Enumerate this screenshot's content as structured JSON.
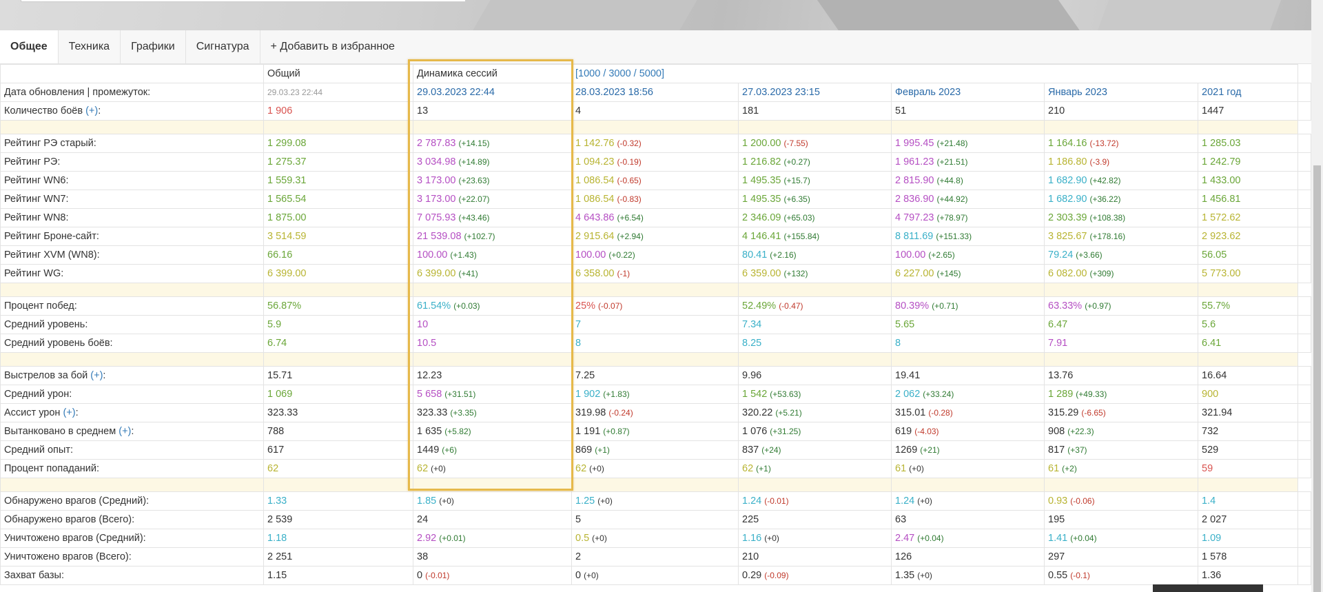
{
  "tabs": [
    {
      "label": "Общее",
      "active": true
    },
    {
      "label": "Техника",
      "active": false
    },
    {
      "label": "Графики",
      "active": false
    },
    {
      "label": "Сигнатура",
      "active": false
    },
    {
      "label": "+ Добавить в избранное",
      "active": false
    }
  ],
  "header": {
    "col1": "Общий",
    "col2": "Динамика сессий",
    "col3": "[1000 / 3000 / 5000]"
  },
  "colors": {
    "red": "#d9534f",
    "green": "#6aa638",
    "yellow": "#b8b432",
    "purple": "#b54fc3",
    "teal": "#3ab0c8",
    "highlight": "#e6b94a",
    "separator": "#fdf8e4",
    "link": "#337ab7"
  },
  "rows": [
    {
      "label": "Дата обновления | промежуток:",
      "cells": [
        {
          "v": "29.03.23 22:44",
          "c": "grey"
        },
        {
          "v": "29.03.2023 22:44",
          "c": "blue"
        },
        {
          "v": "28.03.2023 18:56",
          "c": "blue"
        },
        {
          "v": "27.03.2023 23:15",
          "c": "blue"
        },
        {
          "v": "Февраль 2023",
          "c": "blue"
        },
        {
          "v": "Январь 2023",
          "c": "blue"
        },
        {
          "v": "2021 год",
          "c": "blue"
        }
      ]
    },
    {
      "label": "Количество боёв",
      "plus": "(+)",
      "label_after": ":",
      "cells": [
        {
          "v": "1 906",
          "c": "red"
        },
        {
          "v": "13",
          "c": "dark"
        },
        {
          "v": "4",
          "c": "dark"
        },
        {
          "v": "181",
          "c": "dark"
        },
        {
          "v": "51",
          "c": "dark"
        },
        {
          "v": "210",
          "c": "dark"
        },
        {
          "v": "1447",
          "c": "dark"
        }
      ]
    },
    {
      "sep": true
    },
    {
      "label": "Рейтинг РЭ старый:",
      "cells": [
        {
          "v": "1 299.08",
          "c": "green"
        },
        {
          "v": "2 787.83",
          "c": "purple",
          "d": "(+14.15)",
          "dc": "pos"
        },
        {
          "v": "1 142.76",
          "c": "yellow",
          "d": "(-0.32)",
          "dc": "neg"
        },
        {
          "v": "1 200.00",
          "c": "green",
          "d": "(-7.55)",
          "dc": "neg"
        },
        {
          "v": "1 995.45",
          "c": "purple",
          "d": "(+21.48)",
          "dc": "pos"
        },
        {
          "v": "1 164.16",
          "c": "green",
          "d": "(-13.72)",
          "dc": "neg"
        },
        {
          "v": "1 285.03",
          "c": "green"
        }
      ]
    },
    {
      "label": "Рейтинг РЭ:",
      "cells": [
        {
          "v": "1 275.37",
          "c": "green"
        },
        {
          "v": "3 034.98",
          "c": "purple",
          "d": "(+14.89)",
          "dc": "pos"
        },
        {
          "v": "1 094.23",
          "c": "yellow",
          "d": "(-0.19)",
          "dc": "neg"
        },
        {
          "v": "1 216.82",
          "c": "green",
          "d": "(+0.27)",
          "dc": "pos"
        },
        {
          "v": "1 961.23",
          "c": "purple",
          "d": "(+21.51)",
          "dc": "pos"
        },
        {
          "v": "1 186.80",
          "c": "yellow",
          "d": "(-3.9)",
          "dc": "neg"
        },
        {
          "v": "1 242.79",
          "c": "green"
        }
      ]
    },
    {
      "label": "Рейтинг WN6:",
      "cells": [
        {
          "v": "1 559.31",
          "c": "green"
        },
        {
          "v": "3 173.00",
          "c": "purple",
          "d": "(+23.63)",
          "dc": "pos"
        },
        {
          "v": "1 086.54",
          "c": "yellow",
          "d": "(-0.65)",
          "dc": "neg"
        },
        {
          "v": "1 495.35",
          "c": "green",
          "d": "(+15.7)",
          "dc": "pos"
        },
        {
          "v": "2 815.90",
          "c": "purple",
          "d": "(+44.8)",
          "dc": "pos"
        },
        {
          "v": "1 682.90",
          "c": "teal",
          "d": "(+42.82)",
          "dc": "pos"
        },
        {
          "v": "1 433.00",
          "c": "green"
        }
      ]
    },
    {
      "label": "Рейтинг WN7:",
      "cells": [
        {
          "v": "1 565.54",
          "c": "green"
        },
        {
          "v": "3 173.00",
          "c": "purple",
          "d": "(+22.07)",
          "dc": "pos"
        },
        {
          "v": "1 086.54",
          "c": "yellow",
          "d": "(-0.83)",
          "dc": "neg"
        },
        {
          "v": "1 495.35",
          "c": "green",
          "d": "(+6.35)",
          "dc": "pos"
        },
        {
          "v": "2 836.90",
          "c": "purple",
          "d": "(+44.92)",
          "dc": "pos"
        },
        {
          "v": "1 682.90",
          "c": "teal",
          "d": "(+36.22)",
          "dc": "pos"
        },
        {
          "v": "1 456.81",
          "c": "green"
        }
      ]
    },
    {
      "label": "Рейтинг WN8:",
      "cells": [
        {
          "v": "1 875.00",
          "c": "green"
        },
        {
          "v": "7 075.93",
          "c": "purple",
          "d": "(+43.46)",
          "dc": "pos"
        },
        {
          "v": "4 643.86",
          "c": "purple",
          "d": "(+6.54)",
          "dc": "pos"
        },
        {
          "v": "2 346.09",
          "c": "green",
          "d": "(+65.03)",
          "dc": "pos"
        },
        {
          "v": "4 797.23",
          "c": "purple",
          "d": "(+78.97)",
          "dc": "pos"
        },
        {
          "v": "2 303.39",
          "c": "green",
          "d": "(+108.38)",
          "dc": "pos"
        },
        {
          "v": "1 572.62",
          "c": "yellow"
        }
      ]
    },
    {
      "label": "Рейтинг Броне-сайт:",
      "cells": [
        {
          "v": "3 514.59",
          "c": "yellow"
        },
        {
          "v": "21 539.08",
          "c": "purple",
          "d": "(+102.7)",
          "dc": "pos"
        },
        {
          "v": "2 915.64",
          "c": "yellow",
          "d": "(+2.94)",
          "dc": "pos"
        },
        {
          "v": "4 146.41",
          "c": "green",
          "d": "(+155.84)",
          "dc": "pos"
        },
        {
          "v": "8 811.69",
          "c": "teal",
          "d": "(+151.33)",
          "dc": "pos"
        },
        {
          "v": "3 825.67",
          "c": "yellow",
          "d": "(+178.16)",
          "dc": "pos"
        },
        {
          "v": "2 923.62",
          "c": "yellow"
        }
      ]
    },
    {
      "label": "Рейтинг XVM (WN8):",
      "cells": [
        {
          "v": "66.16",
          "c": "green"
        },
        {
          "v": "100.00",
          "c": "purple",
          "d": "(+1.43)",
          "dc": "pos"
        },
        {
          "v": "100.00",
          "c": "purple",
          "d": "(+0.22)",
          "dc": "pos"
        },
        {
          "v": "80.41",
          "c": "teal",
          "d": "(+2.16)",
          "dc": "pos"
        },
        {
          "v": "100.00",
          "c": "purple",
          "d": "(+2.65)",
          "dc": "pos"
        },
        {
          "v": "79.24",
          "c": "teal",
          "d": "(+3.66)",
          "dc": "pos"
        },
        {
          "v": "56.05",
          "c": "green"
        }
      ]
    },
    {
      "label": "Рейтинг WG:",
      "cells": [
        {
          "v": "6 399.00",
          "c": "yellow"
        },
        {
          "v": "6 399.00",
          "c": "yellow",
          "d": "(+41)",
          "dc": "pos"
        },
        {
          "v": "6 358.00",
          "c": "yellow",
          "d": "(-1)",
          "dc": "neg"
        },
        {
          "v": "6 359.00",
          "c": "yellow",
          "d": "(+132)",
          "dc": "pos"
        },
        {
          "v": "6 227.00",
          "c": "yellow",
          "d": "(+145)",
          "dc": "pos"
        },
        {
          "v": "6 082.00",
          "c": "yellow",
          "d": "(+309)",
          "dc": "pos"
        },
        {
          "v": "5 773.00",
          "c": "yellow"
        }
      ]
    },
    {
      "sep": true
    },
    {
      "label": "Процент побед:",
      "cells": [
        {
          "v": "56.87%",
          "c": "green"
        },
        {
          "v": "61.54%",
          "c": "teal",
          "d": "(+0.03)",
          "dc": "pos"
        },
        {
          "v": "25%",
          "c": "red",
          "d": "(-0.07)",
          "dc": "neg"
        },
        {
          "v": "52.49%",
          "c": "green",
          "d": "(-0.47)",
          "dc": "neg"
        },
        {
          "v": "80.39%",
          "c": "purple",
          "d": "(+0.71)",
          "dc": "pos"
        },
        {
          "v": "63.33%",
          "c": "purple",
          "d": "(+0.97)",
          "dc": "pos"
        },
        {
          "v": "55.7%",
          "c": "green"
        }
      ]
    },
    {
      "label": "Средний уровень:",
      "cells": [
        {
          "v": "5.9",
          "c": "green"
        },
        {
          "v": "10",
          "c": "purple"
        },
        {
          "v": "7",
          "c": "teal"
        },
        {
          "v": "7.34",
          "c": "teal"
        },
        {
          "v": "5.65",
          "c": "green"
        },
        {
          "v": "6.47",
          "c": "green"
        },
        {
          "v": "5.6",
          "c": "green"
        }
      ]
    },
    {
      "label": "Средний уровень боёв:",
      "cells": [
        {
          "v": "6.74",
          "c": "green"
        },
        {
          "v": "10.5",
          "c": "purple"
        },
        {
          "v": "8",
          "c": "teal"
        },
        {
          "v": "8.25",
          "c": "teal"
        },
        {
          "v": "8",
          "c": "teal"
        },
        {
          "v": "7.91",
          "c": "purple"
        },
        {
          "v": "6.41",
          "c": "green"
        }
      ]
    },
    {
      "sep": true
    },
    {
      "label": "Выстрелов за бой",
      "plus": "(+)",
      "label_after": ":",
      "cells": [
        {
          "v": "15.71",
          "c": "dark"
        },
        {
          "v": "12.23",
          "c": "dark"
        },
        {
          "v": "7.25",
          "c": "dark"
        },
        {
          "v": "9.96",
          "c": "dark"
        },
        {
          "v": "19.41",
          "c": "dark"
        },
        {
          "v": "13.76",
          "c": "dark"
        },
        {
          "v": "16.64",
          "c": "dark"
        }
      ]
    },
    {
      "label": "Средний урон:",
      "cells": [
        {
          "v": "1 069",
          "c": "green"
        },
        {
          "v": "5 658",
          "c": "purple",
          "d": "(+31.51)",
          "dc": "pos"
        },
        {
          "v": "1 902",
          "c": "teal",
          "d": "(+1.83)",
          "dc": "pos"
        },
        {
          "v": "1 542",
          "c": "green",
          "d": "(+53.63)",
          "dc": "pos"
        },
        {
          "v": "2 062",
          "c": "teal",
          "d": "(+33.24)",
          "dc": "pos"
        },
        {
          "v": "1 289",
          "c": "green",
          "d": "(+49.33)",
          "dc": "pos"
        },
        {
          "v": "900",
          "c": "yellow"
        }
      ]
    },
    {
      "label": "Ассист урон",
      "plus": "(+)",
      "label_after": ":",
      "cells": [
        {
          "v": "323.33",
          "c": "dark"
        },
        {
          "v": "323.33",
          "c": "dark",
          "d": "(+3.35)",
          "dc": "pos"
        },
        {
          "v": "319.98",
          "c": "dark",
          "d": "(-0.24)",
          "dc": "neg"
        },
        {
          "v": "320.22",
          "c": "dark",
          "d": "(+5.21)",
          "dc": "pos"
        },
        {
          "v": "315.01",
          "c": "dark",
          "d": "(-0.28)",
          "dc": "neg"
        },
        {
          "v": "315.29",
          "c": "dark",
          "d": "(-6.65)",
          "dc": "neg"
        },
        {
          "v": "321.94",
          "c": "dark"
        }
      ]
    },
    {
      "label": "Вытанковано в среднем",
      "plus": "(+)",
      "label_after": ":",
      "cells": [
        {
          "v": "788",
          "c": "dark"
        },
        {
          "v": "1 635",
          "c": "dark",
          "d": "(+5.82)",
          "dc": "pos"
        },
        {
          "v": "1 191",
          "c": "dark",
          "d": "(+0.87)",
          "dc": "pos"
        },
        {
          "v": "1 076",
          "c": "dark",
          "d": "(+31.25)",
          "dc": "pos"
        },
        {
          "v": "619",
          "c": "dark",
          "d": "(-4.03)",
          "dc": "neg"
        },
        {
          "v": "908",
          "c": "dark",
          "d": "(+22.3)",
          "dc": "pos"
        },
        {
          "v": "732",
          "c": "dark"
        }
      ]
    },
    {
      "label": "Средний опыт:",
      "cells": [
        {
          "v": "617",
          "c": "dark"
        },
        {
          "v": "1449",
          "c": "dark",
          "d": "(+6)",
          "dc": "pos"
        },
        {
          "v": "869",
          "c": "dark",
          "d": "(+1)",
          "dc": "pos"
        },
        {
          "v": "837",
          "c": "dark",
          "d": "(+24)",
          "dc": "pos"
        },
        {
          "v": "1269",
          "c": "dark",
          "d": "(+21)",
          "dc": "pos"
        },
        {
          "v": "817",
          "c": "dark",
          "d": "(+37)",
          "dc": "pos"
        },
        {
          "v": "529",
          "c": "dark"
        }
      ]
    },
    {
      "label": "Процент попаданий:",
      "cells": [
        {
          "v": "62",
          "c": "yellow"
        },
        {
          "v": "62",
          "c": "yellow",
          "d": "(+0)",
          "dc": "zero"
        },
        {
          "v": "62",
          "c": "yellow",
          "d": "(+0)",
          "dc": "zero"
        },
        {
          "v": "62",
          "c": "yellow",
          "d": "(+1)",
          "dc": "pos"
        },
        {
          "v": "61",
          "c": "yellow",
          "d": "(+0)",
          "dc": "zero"
        },
        {
          "v": "61",
          "c": "yellow",
          "d": "(+2)",
          "dc": "pos"
        },
        {
          "v": "59",
          "c": "red"
        }
      ]
    },
    {
      "sep": true
    },
    {
      "label": "Обнаружено врагов (Средний):",
      "cells": [
        {
          "v": "1.33",
          "c": "teal"
        },
        {
          "v": "1.85",
          "c": "teal",
          "d": "(+0)",
          "dc": "zero"
        },
        {
          "v": "1.25",
          "c": "teal",
          "d": "(+0)",
          "dc": "zero"
        },
        {
          "v": "1.24",
          "c": "teal",
          "d": "(-0.01)",
          "dc": "neg"
        },
        {
          "v": "1.24",
          "c": "teal",
          "d": "(+0)",
          "dc": "zero"
        },
        {
          "v": "0.93",
          "c": "yellow",
          "d": "(-0.06)",
          "dc": "neg"
        },
        {
          "v": "1.4",
          "c": "teal"
        }
      ]
    },
    {
      "label": "Обнаружено врагов (Всего):",
      "cells": [
        {
          "v": "2 539",
          "c": "dark"
        },
        {
          "v": "24",
          "c": "dark"
        },
        {
          "v": "5",
          "c": "dark"
        },
        {
          "v": "225",
          "c": "dark"
        },
        {
          "v": "63",
          "c": "dark"
        },
        {
          "v": "195",
          "c": "dark"
        },
        {
          "v": "2 027",
          "c": "dark"
        }
      ]
    },
    {
      "label": "Уничтожено врагов (Средний):",
      "cells": [
        {
          "v": "1.18",
          "c": "teal"
        },
        {
          "v": "2.92",
          "c": "purple",
          "d": "(+0.01)",
          "dc": "pos"
        },
        {
          "v": "0.5",
          "c": "yellow",
          "d": "(+0)",
          "dc": "zero"
        },
        {
          "v": "1.16",
          "c": "teal",
          "d": "(+0)",
          "dc": "zero"
        },
        {
          "v": "2.47",
          "c": "purple",
          "d": "(+0.04)",
          "dc": "pos"
        },
        {
          "v": "1.41",
          "c": "teal",
          "d": "(+0.04)",
          "dc": "pos"
        },
        {
          "v": "1.09",
          "c": "teal"
        }
      ]
    },
    {
      "label": "Уничтожено врагов (Всего):",
      "cells": [
        {
          "v": "2 251",
          "c": "dark"
        },
        {
          "v": "38",
          "c": "dark"
        },
        {
          "v": "2",
          "c": "dark"
        },
        {
          "v": "210",
          "c": "dark"
        },
        {
          "v": "126",
          "c": "dark"
        },
        {
          "v": "297",
          "c": "dark"
        },
        {
          "v": "1 578",
          "c": "dark"
        }
      ]
    },
    {
      "label": "Захват базы:",
      "cells": [
        {
          "v": "1.15",
          "c": "dark"
        },
        {
          "v": "0",
          "c": "dark",
          "d": "(-0.01)",
          "dc": "neg"
        },
        {
          "v": "0",
          "c": "dark",
          "d": "(+0)",
          "dc": "zero"
        },
        {
          "v": "0.29",
          "c": "dark",
          "d": "(-0.09)",
          "dc": "neg"
        },
        {
          "v": "1.35",
          "c": "dark",
          "d": "(+0)",
          "dc": "zero"
        },
        {
          "v": "0.55",
          "c": "dark",
          "d": "(-0.1)",
          "dc": "neg"
        },
        {
          "v": "1.36",
          "c": "dark"
        }
      ]
    }
  ]
}
